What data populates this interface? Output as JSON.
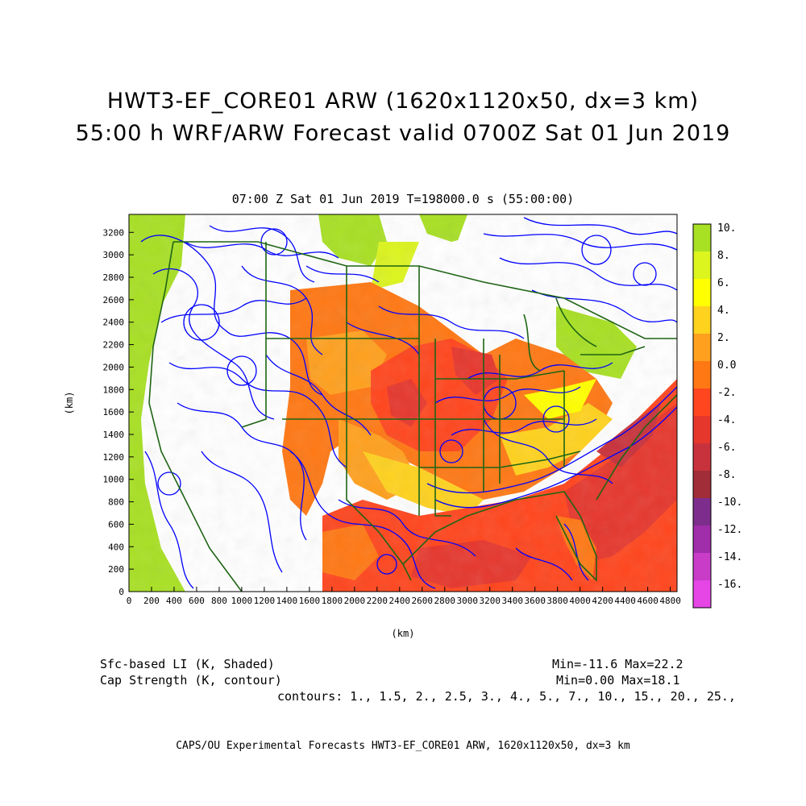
{
  "title": {
    "line1": "HWT3-EF_CORE01 ARW (1620x1120x50, dx=3 km)",
    "line2": "55:00 h WRF/ARW Forecast valid 0700Z Sat 01 Jun 2019"
  },
  "subtitle": "07:00 Z Sat 01 Jun 2019    T=198000.0 s (55:00:00)",
  "axes": {
    "xlabel": "(km)",
    "ylabel": "(km)",
    "x_ticks": [
      "0",
      "200",
      "400",
      "600",
      "800",
      "1000",
      "1200",
      "1400",
      "1600",
      "1800",
      "2000",
      "2200",
      "2400",
      "2600",
      "2800",
      "3000",
      "3200",
      "3400",
      "3600",
      "3800",
      "4000",
      "4200",
      "4400",
      "4600",
      "4800"
    ],
    "y_ticks": [
      "0",
      "200",
      "400",
      "600",
      "800",
      "1000",
      "1200",
      "1400",
      "1600",
      "1800",
      "2000",
      "2200",
      "2400",
      "2600",
      "2800",
      "3000",
      "3200"
    ],
    "xlim": [
      0,
      4860
    ],
    "ylim": [
      0,
      3360
    ]
  },
  "colorbar": {
    "labels": [
      "10.",
      "8.",
      "6.",
      "4.",
      "2.",
      "0.0",
      "-2.",
      "-4.",
      "-6.",
      "-8.",
      "-10.",
      "-12.",
      "-14.",
      "-16."
    ],
    "colors": [
      "#a8e024",
      "#dcf51e",
      "#ffff00",
      "#ffd21e",
      "#ffa01e",
      "#ff7814",
      "#ff461e",
      "#e6372d",
      "#c8323c",
      "#a02d37",
      "#7d2d8c",
      "#a02daa",
      "#c83cc8",
      "#e646e6"
    ]
  },
  "info": {
    "shaded_label": "Sfc-based LI (K, Shaded)",
    "contour_label": "Cap Strength (K, contour)",
    "shaded_range": "Min=-11.6 Max=22.2",
    "contour_range": "Min=0.00 Max=18.1",
    "contours": "contours: 1., 1.5, 2., 2.5, 3., 4., 5., 7., 10., 15., 20., 25.,"
  },
  "footer": "CAPS/OU Experimental Forecasts  HWT3-EF_CORE01 ARW, 1620x1120x50, dx=3 km",
  "colors": {
    "contour": "#0000ff",
    "borders": "#1e6414",
    "warm_gulf": "#ff4a20"
  }
}
